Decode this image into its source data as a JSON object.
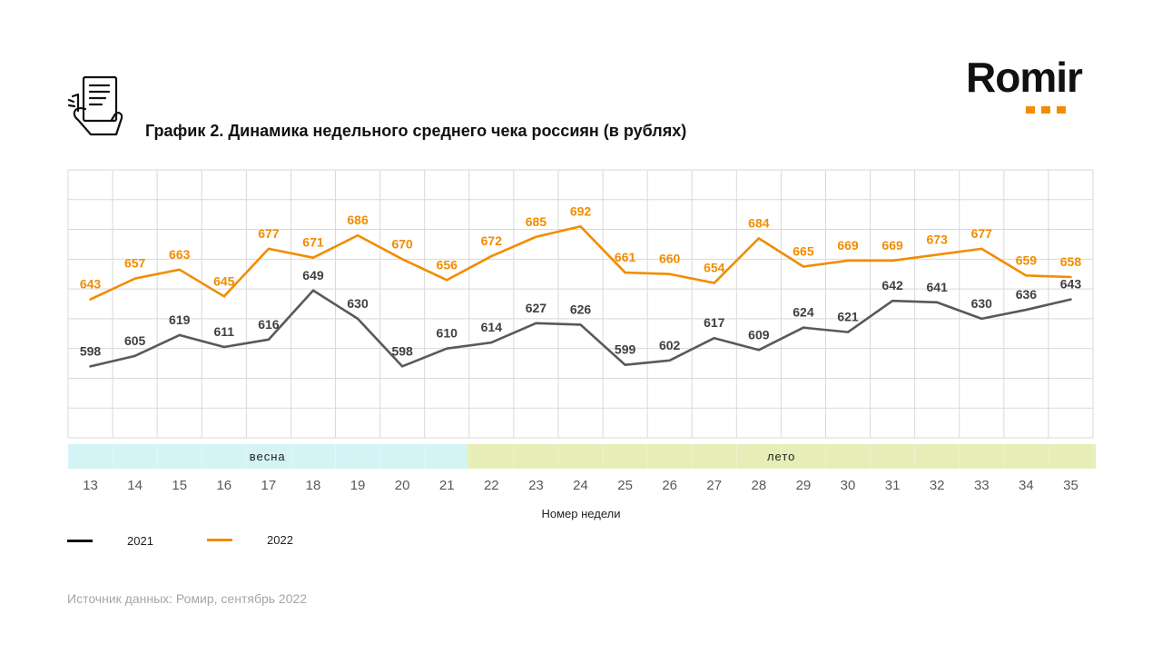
{
  "title": "График 2. Динамика недельного среднего чека россиян (в рублях)",
  "logo": {
    "text": "Romir"
  },
  "source": "Источник данных: Ромир, сентябрь 2022",
  "colors": {
    "series_2021": "#595959",
    "series_2022": "#F28C00",
    "spring": "#D3F3F5",
    "summer": "#E6EDB6",
    "grid": "#D9D9D9"
  },
  "chart_data": {
    "type": "line",
    "title": "График 2. Динамика недельного среднего чека россиян (в рублях)",
    "xlabel": "Номер недели",
    "ylabel": "",
    "categories": [
      "13",
      "14",
      "15",
      "16",
      "17",
      "18",
      "19",
      "20",
      "21",
      "22",
      "23",
      "24",
      "25",
      "26",
      "27",
      "28",
      "29",
      "30",
      "31",
      "32",
      "33",
      "34",
      "35"
    ],
    "series": [
      {
        "name": "2021",
        "values": [
          598,
          605,
          619,
          611,
          616,
          649,
          630,
          598,
          610,
          614,
          627,
          626,
          599,
          602,
          617,
          609,
          624,
          621,
          642,
          641,
          630,
          636,
          643
        ]
      },
      {
        "name": "2022",
        "values": [
          643,
          657,
          663,
          645,
          677,
          671,
          686,
          670,
          656,
          672,
          685,
          692,
          661,
          660,
          654,
          684,
          665,
          669,
          669,
          673,
          677,
          659,
          658
        ]
      }
    ],
    "ylim": [
      550,
      730
    ],
    "grid": true,
    "legend": "bottom-left",
    "seasons": [
      {
        "label": "весна",
        "from": "13",
        "to": "21"
      },
      {
        "label": "лето",
        "from": "22",
        "to": "35"
      }
    ]
  }
}
